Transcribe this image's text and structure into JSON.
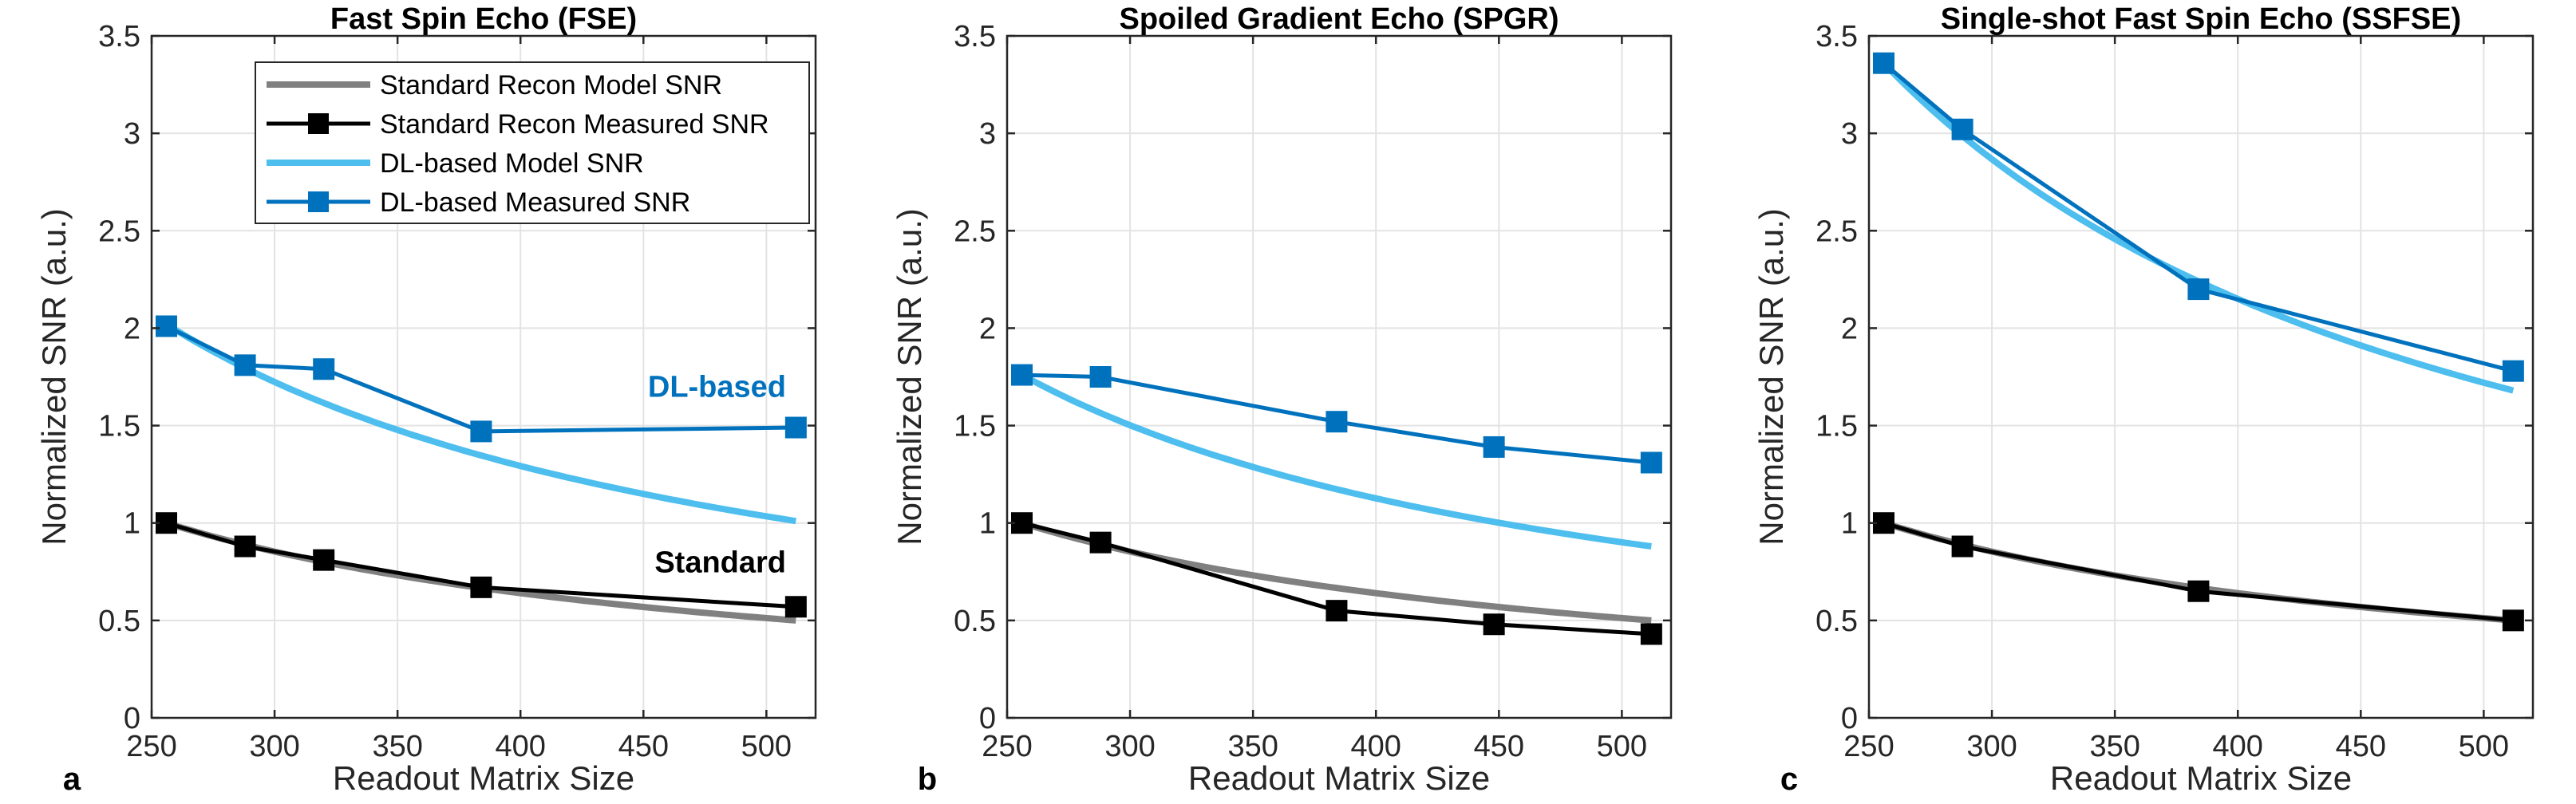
{
  "chart_data": [
    {
      "type": "line",
      "panel_letter": "a",
      "title": "Fast Spin Echo (FSE)",
      "xlabel": "Readout Matrix Size",
      "ylabel": "Normalized SNR (a.u.)",
      "xlim": [
        250,
        520
      ],
      "ylim": [
        0,
        3.5
      ],
      "xticks": [
        250,
        300,
        350,
        400,
        450,
        500
      ],
      "yticks": [
        0,
        0.5,
        1,
        1.5,
        2,
        2.5,
        3,
        3.5
      ],
      "xtick_labels": [
        "250",
        "300",
        "350",
        "400",
        "450",
        "500"
      ],
      "ytick_labels": [
        "0",
        "0.5",
        "1",
        "1.5",
        "2",
        "2.5",
        "3",
        "3.5"
      ],
      "grid": true,
      "legend": {
        "placement": "top-right",
        "entries": [
          "Standard Recon Model SNR",
          "Standard Recon Measured SNR",
          "DL-based Model SNR",
          "DL-based Measured SNR"
        ]
      },
      "annotations": [
        {
          "text": "DL-based",
          "x": 508,
          "y": 1.7,
          "color": "#0072BD"
        },
        {
          "text": "Standard",
          "x": 508,
          "y": 0.8,
          "color": "#000000"
        }
      ],
      "series": [
        {
          "name": "Standard Recon Model SNR",
          "kind": "model",
          "scale": 1.0,
          "x0": 256,
          "x_end": 512,
          "color": "#808080"
        },
        {
          "name": "Standard Recon Measured SNR",
          "kind": "measured",
          "x": [
            256,
            288,
            320,
            384,
            512
          ],
          "y": [
            1.0,
            0.88,
            0.81,
            0.67,
            0.57
          ],
          "color": "#000000"
        },
        {
          "name": "DL-based Model SNR",
          "kind": "model",
          "scale": 2.02,
          "x0": 256,
          "x_end": 512,
          "color": "#4DBEEE"
        },
        {
          "name": "DL-based Measured SNR",
          "kind": "measured",
          "x": [
            256,
            288,
            320,
            384,
            512
          ],
          "y": [
            2.01,
            1.81,
            1.79,
            1.47,
            1.49
          ],
          "color": "#0072BD"
        }
      ]
    },
    {
      "type": "line",
      "panel_letter": "b",
      "title": "Spoiled Gradient Echo (SPGR)",
      "xlabel": "Readout Matrix Size",
      "ylabel": "Normalized SNR (a.u.)",
      "xlim": [
        250,
        520
      ],
      "ylim": [
        0,
        3.5
      ],
      "xticks": [
        250,
        300,
        350,
        400,
        450,
        500
      ],
      "yticks": [
        0,
        0.5,
        1,
        1.5,
        2,
        2.5,
        3,
        3.5
      ],
      "xtick_labels": [
        "250",
        "300",
        "350",
        "400",
        "450",
        "500"
      ],
      "ytick_labels": [
        "0",
        "0.5",
        "1",
        "1.5",
        "2",
        "2.5",
        "3",
        "3.5"
      ],
      "grid": true,
      "series": [
        {
          "name": "Standard Recon Model SNR",
          "kind": "model",
          "scale": 1.0,
          "x0": 256,
          "x_end": 512,
          "color": "#808080"
        },
        {
          "name": "Standard Recon Measured SNR",
          "kind": "measured",
          "x": [
            256,
            288,
            384,
            448,
            512
          ],
          "y": [
            1.0,
            0.9,
            0.55,
            0.48,
            0.43
          ],
          "color": "#000000"
        },
        {
          "name": "DL-based Model SNR",
          "kind": "model",
          "scale": 1.76,
          "x0": 256,
          "x_end": 512,
          "color": "#4DBEEE"
        },
        {
          "name": "DL-based Measured SNR",
          "kind": "measured",
          "x": [
            256,
            288,
            384,
            448,
            512
          ],
          "y": [
            1.76,
            1.75,
            1.52,
            1.39,
            1.31
          ],
          "color": "#0072BD"
        }
      ]
    },
    {
      "type": "line",
      "panel_letter": "c",
      "title": "Single-shot Fast Spin Echo (SSFSE)",
      "xlabel": "Readout Matrix Size",
      "ylabel": "Normalized SNR (a.u.)",
      "xlim": [
        250,
        520
      ],
      "ylim": [
        0,
        3.5
      ],
      "xticks": [
        250,
        300,
        350,
        400,
        450,
        500
      ],
      "yticks": [
        0,
        0.5,
        1,
        1.5,
        2,
        2.5,
        3,
        3.5
      ],
      "xtick_labels": [
        "250",
        "300",
        "350",
        "400",
        "450",
        "500"
      ],
      "ytick_labels": [
        "0",
        "0.5",
        "1",
        "1.5",
        "2",
        "2.5",
        "3",
        "3.5"
      ],
      "grid": true,
      "series": [
        {
          "name": "Standard Recon Model SNR",
          "kind": "model",
          "scale": 1.0,
          "x0": 256,
          "x_end": 512,
          "color": "#808080"
        },
        {
          "name": "Standard Recon Measured SNR",
          "kind": "measured",
          "x": [
            256,
            288,
            384,
            512
          ],
          "y": [
            1.0,
            0.88,
            0.65,
            0.5
          ],
          "color": "#000000"
        },
        {
          "name": "DL-based Model SNR",
          "kind": "model",
          "scale": 3.36,
          "x0": 256,
          "x_end": 512,
          "color": "#4DBEEE"
        },
        {
          "name": "DL-based Measured SNR",
          "kind": "measured",
          "x": [
            256,
            288,
            384,
            512
          ],
          "y": [
            3.36,
            3.02,
            2.2,
            1.78
          ],
          "color": "#0072BD"
        }
      ]
    }
  ]
}
